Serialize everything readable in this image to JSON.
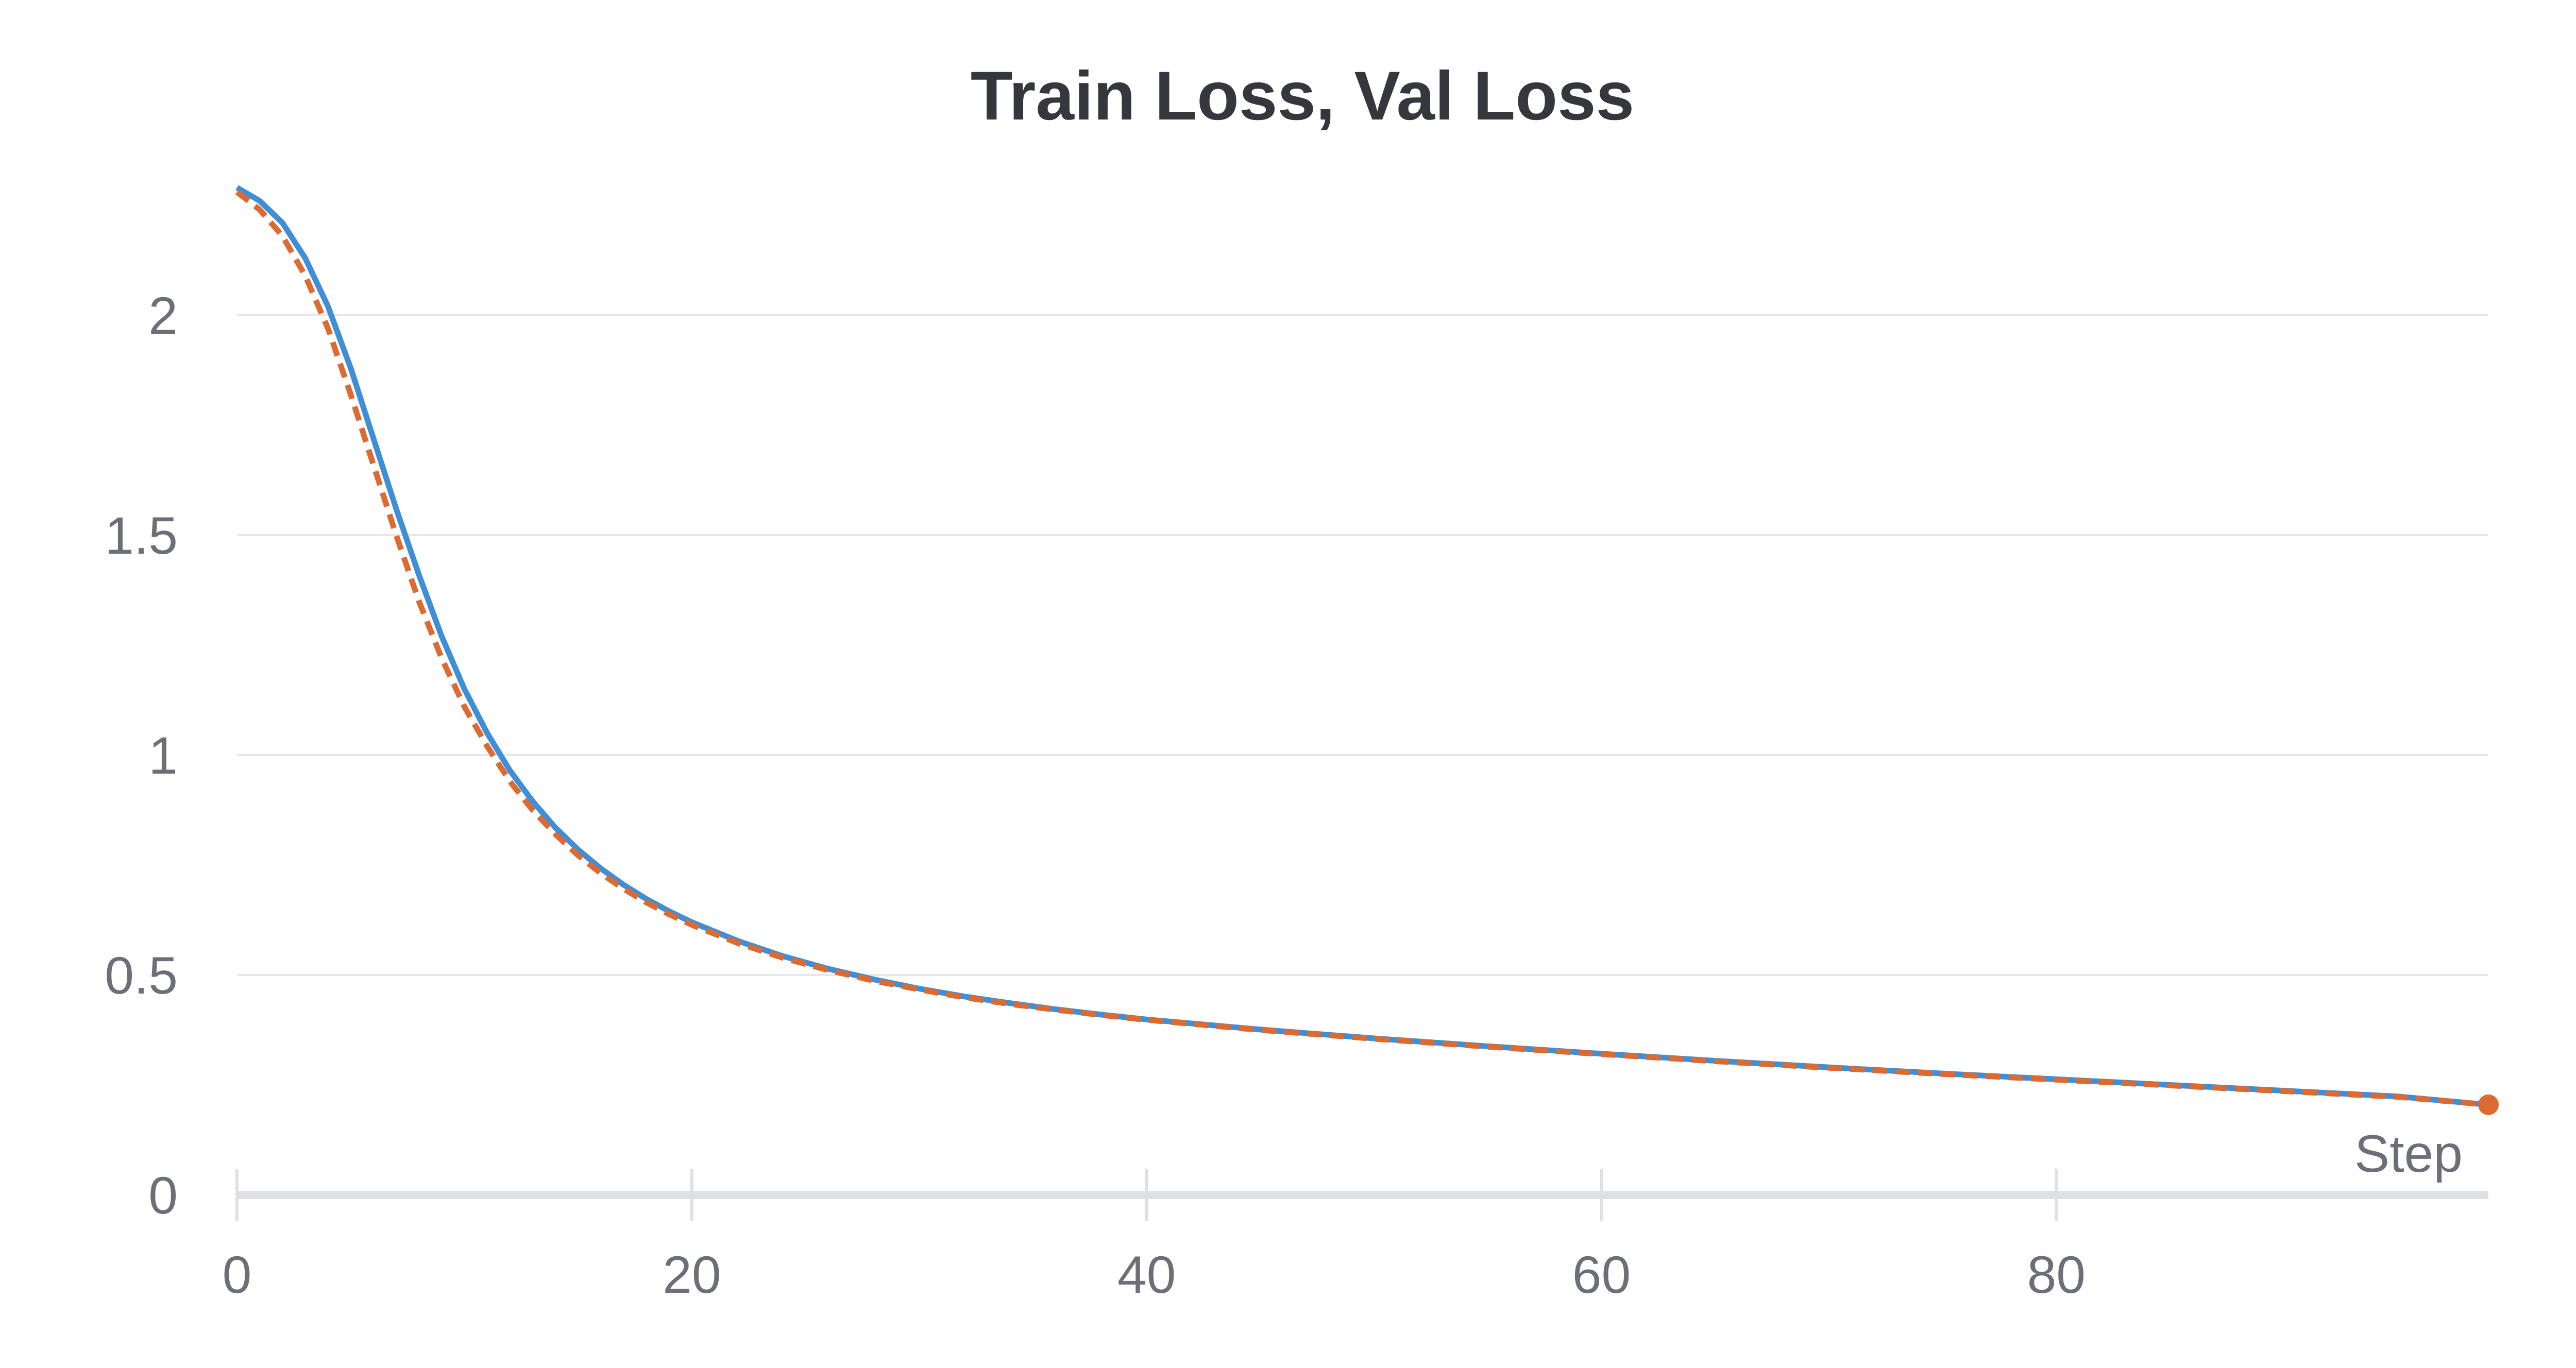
{
  "chart_data": {
    "type": "line",
    "title": "Train Loss, Val Loss",
    "xlabel": "Step",
    "ylabel": "",
    "xlim": [
      0,
      99
    ],
    "ylim": [
      0,
      2.3
    ],
    "x_ticks": [
      0,
      20,
      40,
      60,
      80
    ],
    "y_ticks": [
      0,
      0.5,
      1,
      1.5,
      2
    ],
    "grid": true,
    "legend": "none",
    "x": [
      0,
      1,
      2,
      3,
      4,
      5,
      6,
      7,
      8,
      9,
      10,
      11,
      12,
      13,
      14,
      15,
      16,
      17,
      18,
      19,
      20,
      22,
      24,
      26,
      28,
      30,
      32,
      34,
      36,
      38,
      40,
      45,
      50,
      55,
      60,
      65,
      70,
      75,
      80,
      85,
      90,
      95,
      99
    ],
    "series": [
      {
        "color": "#3e8fd8",
        "dash": "solid",
        "values": [
          2.29,
          2.26,
          2.21,
          2.13,
          2.02,
          1.88,
          1.72,
          1.56,
          1.41,
          1.27,
          1.15,
          1.05,
          0.965,
          0.895,
          0.835,
          0.785,
          0.742,
          0.705,
          0.673,
          0.645,
          0.62,
          0.578,
          0.543,
          0.514,
          0.49,
          0.469,
          0.451,
          0.436,
          0.422,
          0.41,
          0.399,
          0.376,
          0.356,
          0.338,
          0.321,
          0.305,
          0.29,
          0.276,
          0.263,
          0.25,
          0.237,
          0.224,
          0.205
        ]
      },
      {
        "color": "#dc6a31",
        "dash": "dashed",
        "values": [
          2.28,
          2.24,
          2.18,
          2.09,
          1.97,
          1.82,
          1.66,
          1.5,
          1.35,
          1.22,
          1.11,
          1.02,
          0.94,
          0.875,
          0.82,
          0.772,
          0.731,
          0.696,
          0.665,
          0.638,
          0.614,
          0.573,
          0.539,
          0.511,
          0.487,
          0.467,
          0.449,
          0.434,
          0.421,
          0.409,
          0.398,
          0.375,
          0.355,
          0.337,
          0.32,
          0.304,
          0.289,
          0.275,
          0.262,
          0.249,
          0.236,
          0.223,
          0.205
        ],
        "end_marker": true
      }
    ]
  }
}
